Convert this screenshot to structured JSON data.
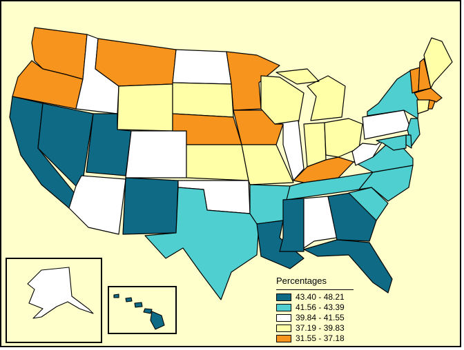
{
  "legend": {
    "title": "Percentages",
    "classes": [
      {
        "label": "43.40 - 48.21",
        "color": "#0f6a85"
      },
      {
        "label": "41.56 - 43.39",
        "color": "#4fcfcf"
      },
      {
        "label": "39.84 - 41.55",
        "color": "#ffffff"
      },
      {
        "label": "37.19 - 39.83",
        "color": "#ffffa8"
      },
      {
        "label": "31.55 - 37.18",
        "color": "#f7941d"
      }
    ]
  },
  "state_classes": {
    "WA": 4,
    "OR": 4,
    "CA": 0,
    "NV": 0,
    "ID": 2,
    "MT": 4,
    "WY": 3,
    "UT": 0,
    "AZ": 2,
    "CO": 2,
    "NM": 0,
    "ND": 2,
    "SD": 3,
    "NE": 4,
    "KS": 3,
    "OK": 2,
    "TX": 1,
    "MN": 4,
    "IA": 4,
    "MO": 3,
    "AR": 1,
    "LA": 0,
    "WI": 3,
    "IL": 2,
    "MI": 3,
    "IN": 3,
    "OH": 3,
    "KY": 4,
    "TN": 1,
    "MS": 0,
    "AL": 2,
    "GA": 0,
    "FL": 0,
    "SC": 1,
    "NC": 1,
    "VA": 1,
    "WV": 2,
    "PA": 2,
    "NY": 1,
    "VT": 4,
    "NH": 4,
    "ME": 3,
    "MA": 4,
    "CT": 3,
    "RI": 4,
    "NJ": 1,
    "DE": 1,
    "MD": 1,
    "AK": 2,
    "HI": 0
  }
}
